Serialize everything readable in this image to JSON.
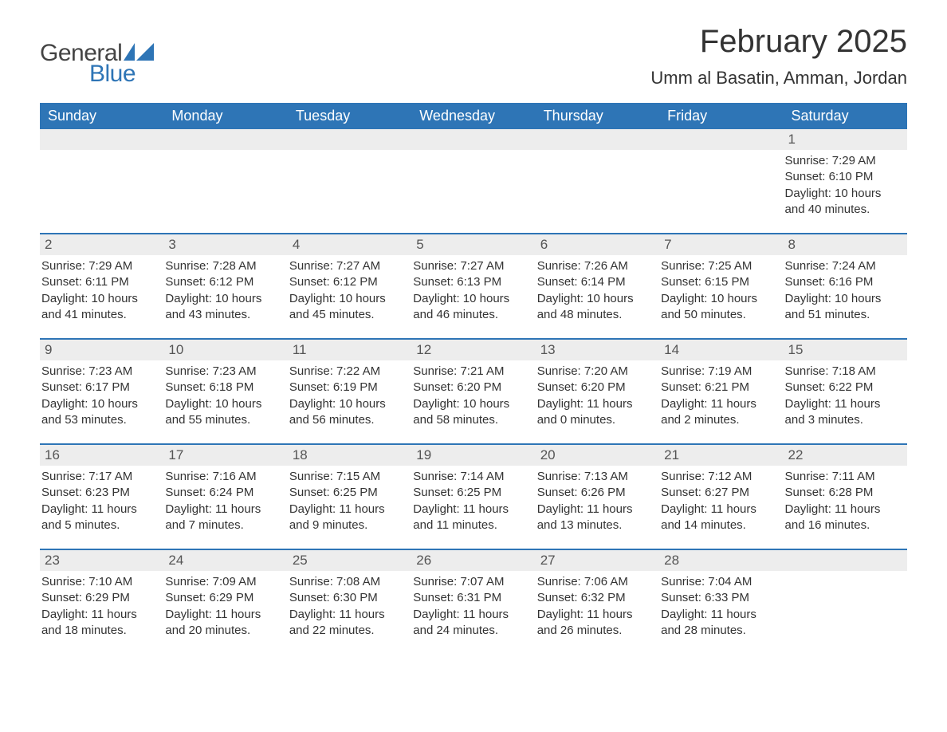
{
  "logo": {
    "text1": "General",
    "text2": "Blue",
    "icon_color": "#2e75b6"
  },
  "title": "February 2025",
  "subtitle": "Umm al Basatin, Amman, Jordan",
  "colors": {
    "header_bg": "#2e75b6",
    "header_text": "#ffffff",
    "daynum_bg": "#ededed",
    "row_border": "#2e75b6",
    "body_text": "#333333",
    "background": "#ffffff"
  },
  "columns": [
    "Sunday",
    "Monday",
    "Tuesday",
    "Wednesday",
    "Thursday",
    "Friday",
    "Saturday"
  ],
  "weeks": [
    [
      null,
      null,
      null,
      null,
      null,
      null,
      {
        "n": "1",
        "sunrise": "Sunrise: 7:29 AM",
        "sunset": "Sunset: 6:10 PM",
        "daylight": "Daylight: 10 hours and 40 minutes."
      }
    ],
    [
      {
        "n": "2",
        "sunrise": "Sunrise: 7:29 AM",
        "sunset": "Sunset: 6:11 PM",
        "daylight": "Daylight: 10 hours and 41 minutes."
      },
      {
        "n": "3",
        "sunrise": "Sunrise: 7:28 AM",
        "sunset": "Sunset: 6:12 PM",
        "daylight": "Daylight: 10 hours and 43 minutes."
      },
      {
        "n": "4",
        "sunrise": "Sunrise: 7:27 AM",
        "sunset": "Sunset: 6:12 PM",
        "daylight": "Daylight: 10 hours and 45 minutes."
      },
      {
        "n": "5",
        "sunrise": "Sunrise: 7:27 AM",
        "sunset": "Sunset: 6:13 PM",
        "daylight": "Daylight: 10 hours and 46 minutes."
      },
      {
        "n": "6",
        "sunrise": "Sunrise: 7:26 AM",
        "sunset": "Sunset: 6:14 PM",
        "daylight": "Daylight: 10 hours and 48 minutes."
      },
      {
        "n": "7",
        "sunrise": "Sunrise: 7:25 AM",
        "sunset": "Sunset: 6:15 PM",
        "daylight": "Daylight: 10 hours and 50 minutes."
      },
      {
        "n": "8",
        "sunrise": "Sunrise: 7:24 AM",
        "sunset": "Sunset: 6:16 PM",
        "daylight": "Daylight: 10 hours and 51 minutes."
      }
    ],
    [
      {
        "n": "9",
        "sunrise": "Sunrise: 7:23 AM",
        "sunset": "Sunset: 6:17 PM",
        "daylight": "Daylight: 10 hours and 53 minutes."
      },
      {
        "n": "10",
        "sunrise": "Sunrise: 7:23 AM",
        "sunset": "Sunset: 6:18 PM",
        "daylight": "Daylight: 10 hours and 55 minutes."
      },
      {
        "n": "11",
        "sunrise": "Sunrise: 7:22 AM",
        "sunset": "Sunset: 6:19 PM",
        "daylight": "Daylight: 10 hours and 56 minutes."
      },
      {
        "n": "12",
        "sunrise": "Sunrise: 7:21 AM",
        "sunset": "Sunset: 6:20 PM",
        "daylight": "Daylight: 10 hours and 58 minutes."
      },
      {
        "n": "13",
        "sunrise": "Sunrise: 7:20 AM",
        "sunset": "Sunset: 6:20 PM",
        "daylight": "Daylight: 11 hours and 0 minutes."
      },
      {
        "n": "14",
        "sunrise": "Sunrise: 7:19 AM",
        "sunset": "Sunset: 6:21 PM",
        "daylight": "Daylight: 11 hours and 2 minutes."
      },
      {
        "n": "15",
        "sunrise": "Sunrise: 7:18 AM",
        "sunset": "Sunset: 6:22 PM",
        "daylight": "Daylight: 11 hours and 3 minutes."
      }
    ],
    [
      {
        "n": "16",
        "sunrise": "Sunrise: 7:17 AM",
        "sunset": "Sunset: 6:23 PM",
        "daylight": "Daylight: 11 hours and 5 minutes."
      },
      {
        "n": "17",
        "sunrise": "Sunrise: 7:16 AM",
        "sunset": "Sunset: 6:24 PM",
        "daylight": "Daylight: 11 hours and 7 minutes."
      },
      {
        "n": "18",
        "sunrise": "Sunrise: 7:15 AM",
        "sunset": "Sunset: 6:25 PM",
        "daylight": "Daylight: 11 hours and 9 minutes."
      },
      {
        "n": "19",
        "sunrise": "Sunrise: 7:14 AM",
        "sunset": "Sunset: 6:25 PM",
        "daylight": "Daylight: 11 hours and 11 minutes."
      },
      {
        "n": "20",
        "sunrise": "Sunrise: 7:13 AM",
        "sunset": "Sunset: 6:26 PM",
        "daylight": "Daylight: 11 hours and 13 minutes."
      },
      {
        "n": "21",
        "sunrise": "Sunrise: 7:12 AM",
        "sunset": "Sunset: 6:27 PM",
        "daylight": "Daylight: 11 hours and 14 minutes."
      },
      {
        "n": "22",
        "sunrise": "Sunrise: 7:11 AM",
        "sunset": "Sunset: 6:28 PM",
        "daylight": "Daylight: 11 hours and 16 minutes."
      }
    ],
    [
      {
        "n": "23",
        "sunrise": "Sunrise: 7:10 AM",
        "sunset": "Sunset: 6:29 PM",
        "daylight": "Daylight: 11 hours and 18 minutes."
      },
      {
        "n": "24",
        "sunrise": "Sunrise: 7:09 AM",
        "sunset": "Sunset: 6:29 PM",
        "daylight": "Daylight: 11 hours and 20 minutes."
      },
      {
        "n": "25",
        "sunrise": "Sunrise: 7:08 AM",
        "sunset": "Sunset: 6:30 PM",
        "daylight": "Daylight: 11 hours and 22 minutes."
      },
      {
        "n": "26",
        "sunrise": "Sunrise: 7:07 AM",
        "sunset": "Sunset: 6:31 PM",
        "daylight": "Daylight: 11 hours and 24 minutes."
      },
      {
        "n": "27",
        "sunrise": "Sunrise: 7:06 AM",
        "sunset": "Sunset: 6:32 PM",
        "daylight": "Daylight: 11 hours and 26 minutes."
      },
      {
        "n": "28",
        "sunrise": "Sunrise: 7:04 AM",
        "sunset": "Sunset: 6:33 PM",
        "daylight": "Daylight: 11 hours and 28 minutes."
      },
      null
    ]
  ]
}
